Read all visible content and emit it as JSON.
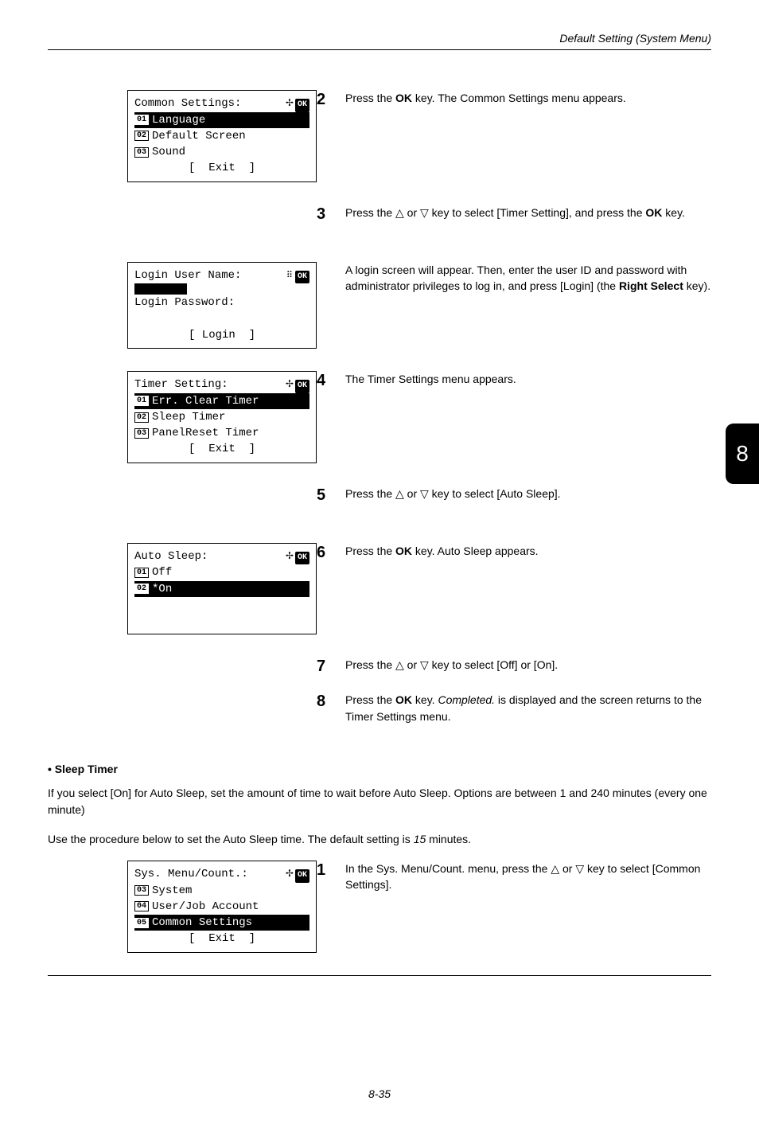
{
  "header": {
    "title": "Default Setting (System Menu)"
  },
  "tab": {
    "num": "8"
  },
  "lcd1": {
    "title": "Common Settings:",
    "i1_num": "01",
    "i1": "Language",
    "i2_num": "02",
    "i2": "Default Screen",
    "i3_num": "03",
    "i3": "Sound",
    "exit": "[  Exit  ]"
  },
  "lcd2": {
    "title": "Login User Name:",
    "pw_label": "Login Password:",
    "login": "[ Login  ]"
  },
  "lcd3": {
    "title": "Timer Setting:",
    "i1_num": "01",
    "i1": "Err. Clear Timer",
    "i2_num": "02",
    "i2": "Sleep Timer",
    "i3_num": "03",
    "i3": "PanelReset Timer",
    "exit": "[  Exit  ]"
  },
  "lcd4": {
    "title": "Auto Sleep:",
    "i1_num": "01",
    "i1": "Off",
    "i2_num": "02",
    "i2": "*On"
  },
  "lcd5": {
    "title": "Sys. Menu/Count.:",
    "i1_num": "03",
    "i1": "System",
    "i2_num": "04",
    "i2": "User/Job Account",
    "i3_num": "05",
    "i3": "Common Settings",
    "exit": "[  Exit  ]"
  },
  "steps": {
    "s2": "Press the OK key. The Common Settings menu appears.",
    "s3a": "Press the △ or ▽ key to select [Timer Setting], and press the OK key.",
    "s3b": "A login screen will appear. Then, enter the user ID and password with administrator privileges to log in, and press [Login] (the Right Select key).",
    "s4": "The Timer Settings menu appears.",
    "s5": "Press the △ or ▽ key to select [Auto Sleep].",
    "s6": "Press the OK key. Auto Sleep appears.",
    "s7": "Press the △ or ▽ key to select [Off] or [On].",
    "s8": "Press the OK key. Completed. is displayed and the screen returns to the Timer Settings menu."
  },
  "section": {
    "bullet": "Sleep Timer",
    "p1": "If you select [On] for Auto Sleep, set the amount of time to wait before Auto Sleep. Options are between 1 and 240 minutes (every one minute)",
    "p2": "Use the procedure below to set the Auto Sleep time. The default setting is 15 minutes."
  },
  "step_bottom": {
    "s1": "In the Sys. Menu/Count. menu, press the △ or ▽ key to select [Common Settings]."
  },
  "footer": {
    "page": "8-35"
  },
  "glyph": {
    "nav4": "✢",
    "ok": "OK"
  }
}
